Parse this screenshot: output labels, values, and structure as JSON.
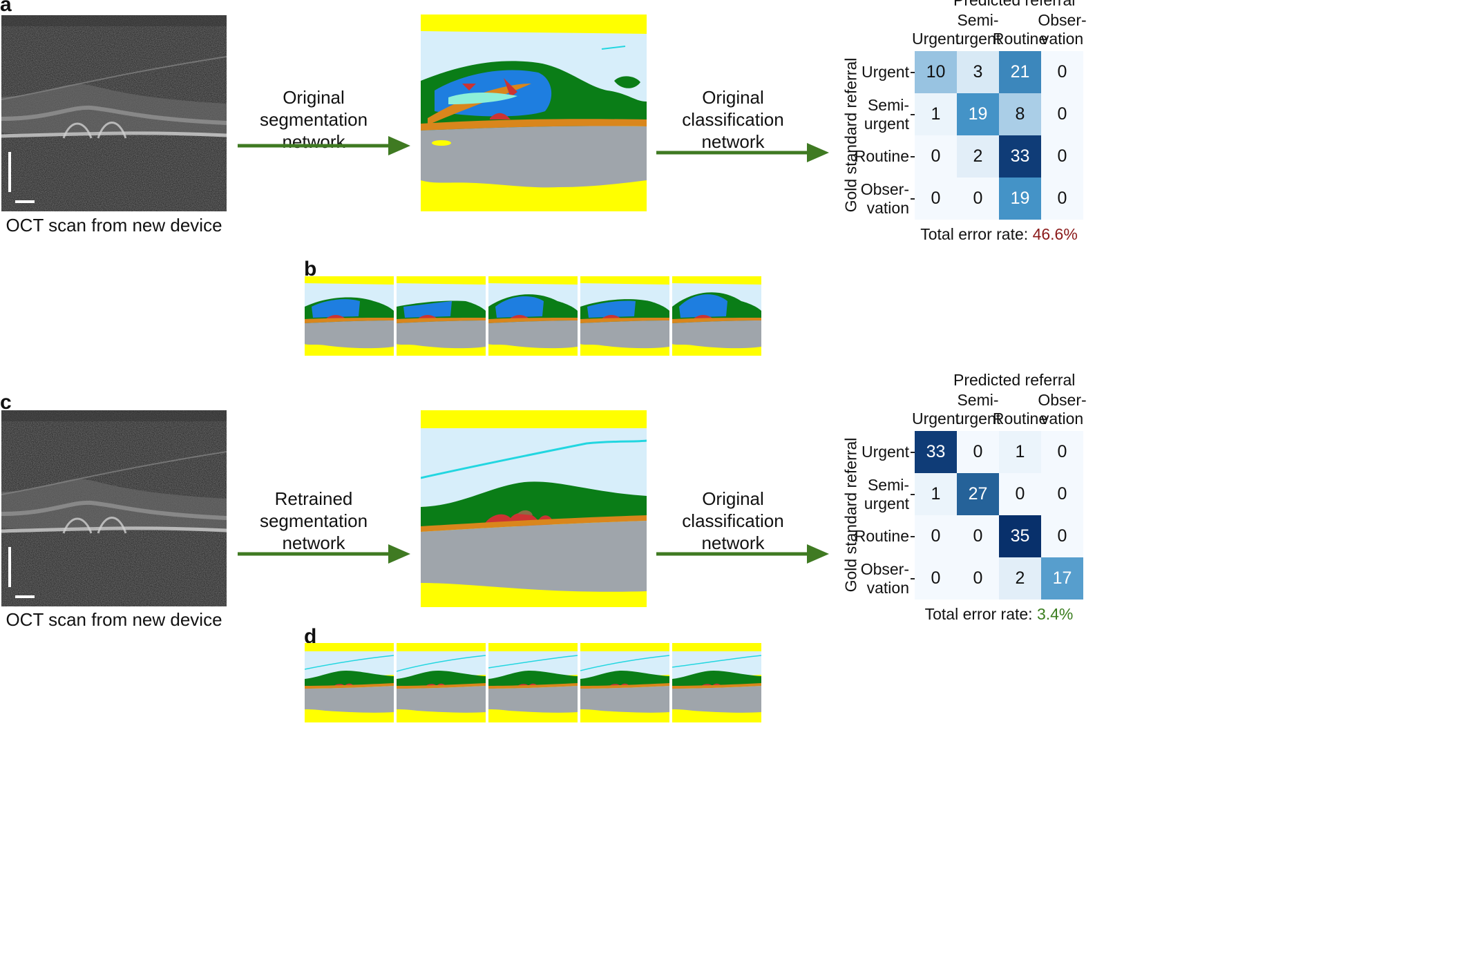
{
  "panel_a": {
    "letter": "a",
    "oct_caption": "OCT scan from new device",
    "step1": [
      "Original",
      "segmentation",
      "network"
    ],
    "step2": [
      "Original",
      "classification",
      "network"
    ],
    "matrix": {
      "title": "Predicted referral",
      "columns": [
        [
          "Urgent"
        ],
        [
          "Semi-",
          "urgent"
        ],
        [
          "Routine"
        ],
        [
          "Obser-",
          "vation"
        ]
      ],
      "rows": [
        [
          "Urgent"
        ],
        [
          "Semi-",
          "urgent"
        ],
        [
          "Routine"
        ],
        [
          "Obser-",
          "vation"
        ]
      ],
      "y_label": "Gold standard referral",
      "values": [
        [
          10,
          3,
          21,
          0
        ],
        [
          1,
          19,
          8,
          0
        ],
        [
          0,
          2,
          33,
          0
        ],
        [
          0,
          0,
          19,
          0
        ]
      ],
      "error_label": "Total error rate: ",
      "error_value": "46.6%",
      "error_color": "#8b1a1a"
    }
  },
  "panel_b": {
    "letter": "b",
    "thumb_count": 5
  },
  "panel_c": {
    "letter": "c",
    "oct_caption": "OCT scan from new device",
    "step1": [
      "Retrained",
      "segmentation",
      "network"
    ],
    "step2": [
      "Original",
      "classification",
      "network"
    ],
    "matrix": {
      "title": "Predicted referral",
      "columns": [
        [
          "Urgent"
        ],
        [
          "Semi-",
          "urgent"
        ],
        [
          "Routine"
        ],
        [
          "Obser-",
          "vation"
        ]
      ],
      "rows": [
        [
          "Urgent"
        ],
        [
          "Semi-",
          "urgent"
        ],
        [
          "Routine"
        ],
        [
          "Obser-",
          "vation"
        ]
      ],
      "y_label": "Gold standard referral",
      "values": [
        [
          33,
          0,
          1,
          0
        ],
        [
          1,
          27,
          0,
          0
        ],
        [
          0,
          0,
          35,
          0
        ],
        [
          0,
          0,
          2,
          17
        ]
      ],
      "error_label": "Total error rate: ",
      "error_value": "3.4%",
      "error_color": "#3a7d1e"
    }
  },
  "panel_d": {
    "letter": "d",
    "thumb_count": 5
  },
  "colors": {
    "arrow": "#3f7a22",
    "vitreous": "#d7eefa",
    "retina": "#0a7d17",
    "rpe": "#d9861c",
    "choroid": "#9fa5ab",
    "background": "#ffff00",
    "fluid": "#1e7ee0",
    "ped": "#cc3333",
    "membrane": "#22d6e0"
  }
}
